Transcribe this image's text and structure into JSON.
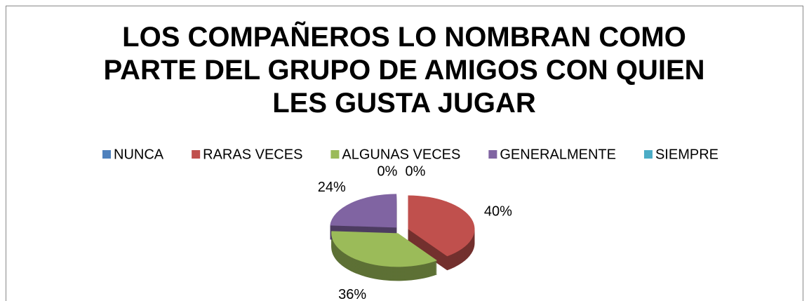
{
  "chart_data": {
    "type": "pie",
    "title": "LOS COMPAÑEROS LO NOMBRAN COMO PARTE DEL GRUPO DE AMIGOS CON QUIEN LES GUSTA JUGAR",
    "categories": [
      "NUNCA",
      "RARAS VECES",
      "ALGUNAS VECES",
      "GENERALMENTE",
      "SIEMPRE"
    ],
    "values": [
      0,
      40,
      36,
      24,
      0
    ],
    "value_labels": [
      "0%",
      "40%",
      "36%",
      "24%",
      "0%"
    ],
    "colors": [
      "#4f81bd",
      "#c0504d",
      "#9bbb59",
      "#8064a2",
      "#4bacc6"
    ],
    "legend": "top"
  }
}
